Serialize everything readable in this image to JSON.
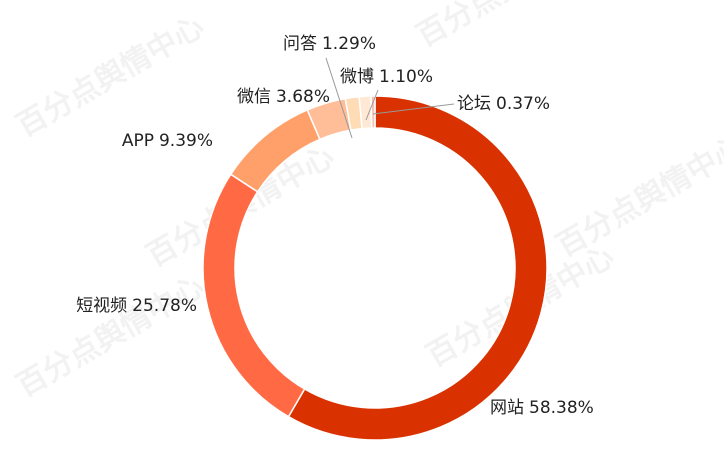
{
  "chart_data": {
    "type": "donut",
    "watermark": "百分点舆情中心",
    "categories": [
      "网站",
      "短视频",
      "APP",
      "微信",
      "问答",
      "微博",
      "论坛"
    ],
    "values": [
      58.38,
      25.78,
      9.39,
      3.68,
      1.29,
      1.1,
      0.37
    ],
    "value_labels": [
      "58.38%",
      "25.78%",
      "9.39%",
      "3.68%",
      "1.29%",
      "1.10%",
      "0.37%"
    ],
    "colors": [
      "#d93100",
      "#ff6a45",
      "#ffa06a",
      "#ffbd98",
      "#ffdcb5",
      "#ffe8d4",
      "#f3c3b3"
    ]
  }
}
